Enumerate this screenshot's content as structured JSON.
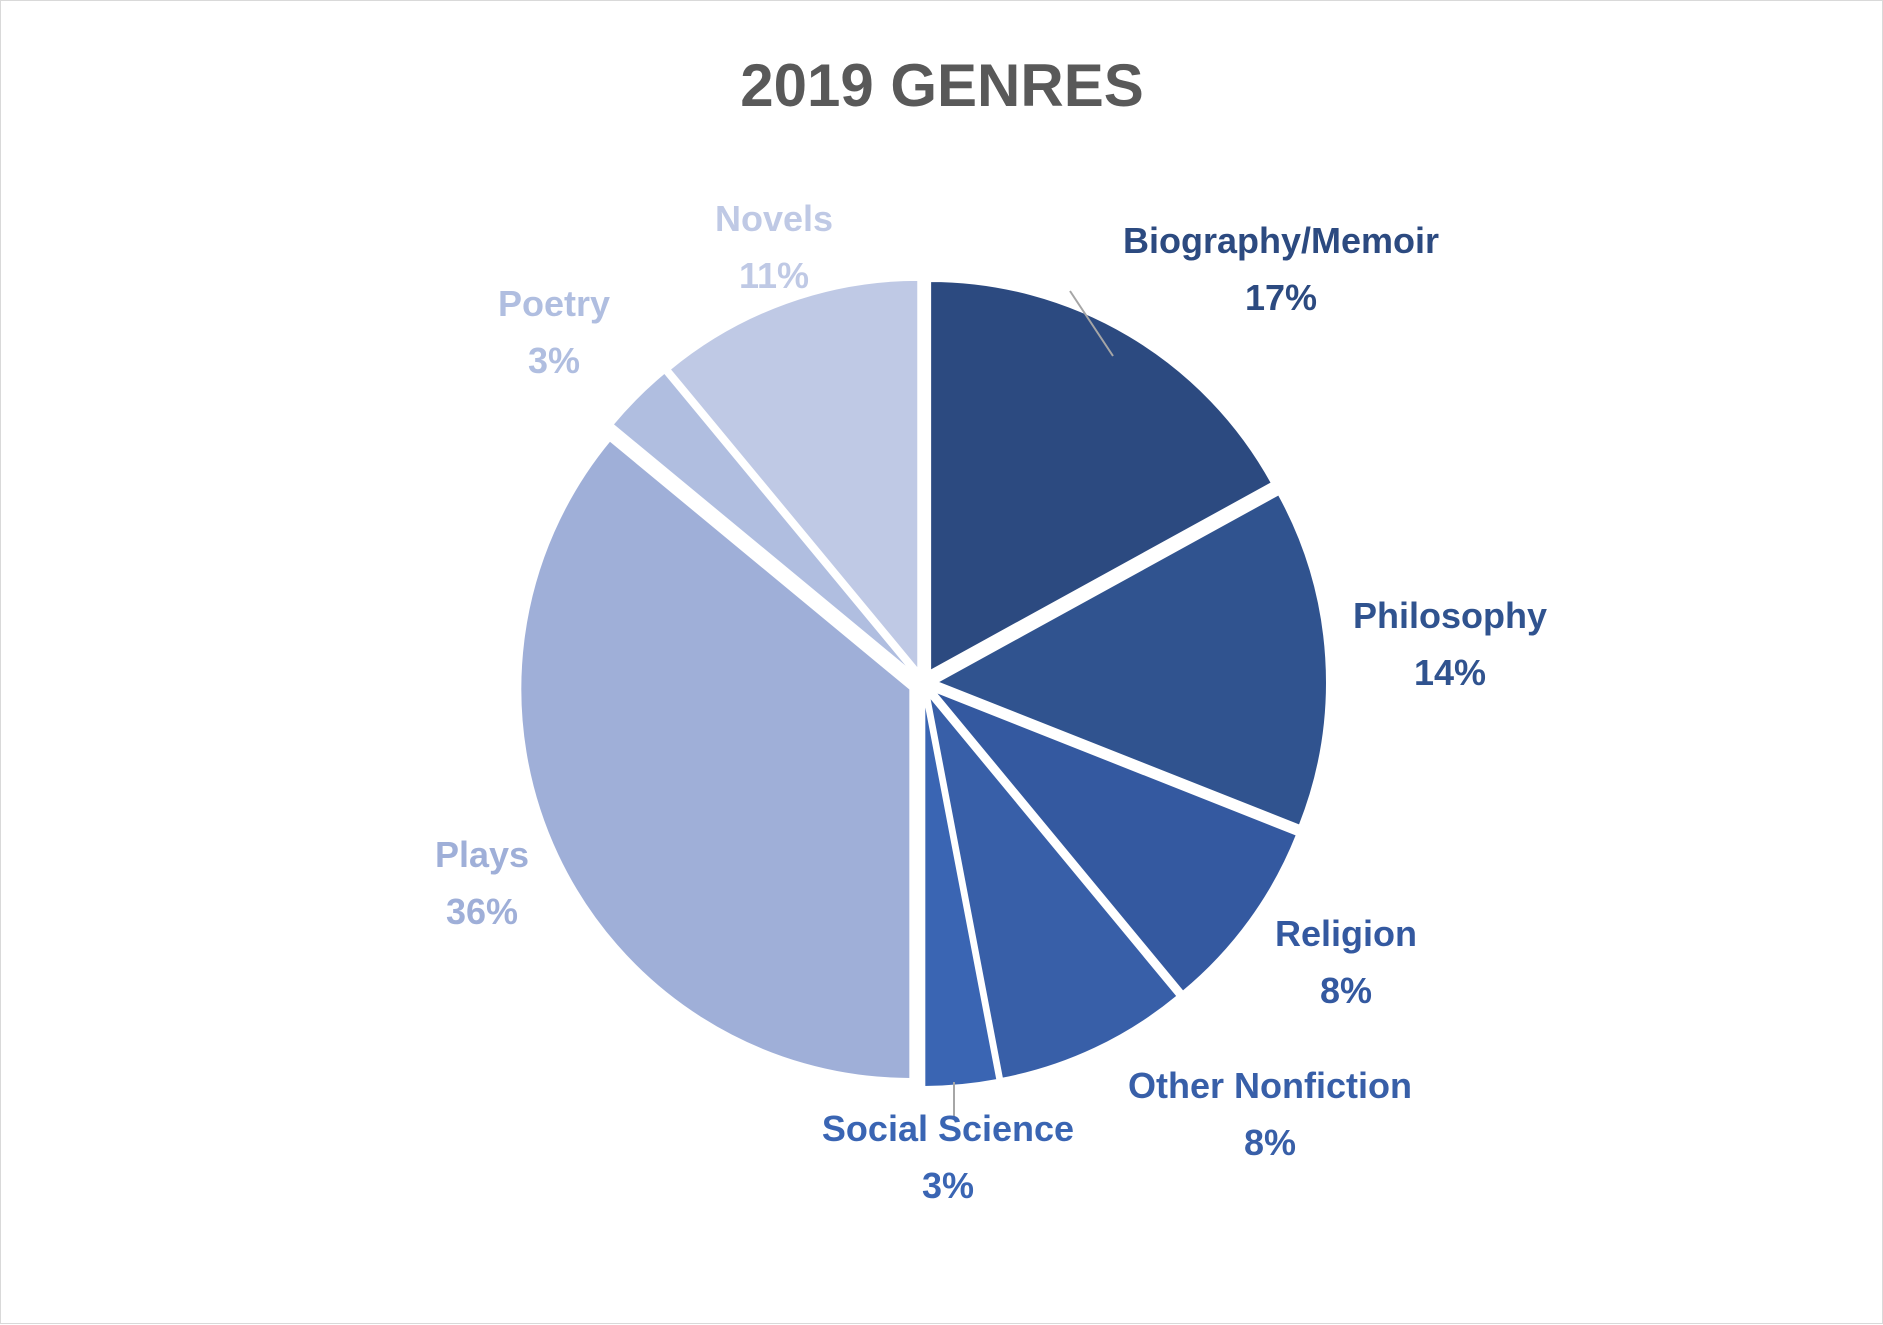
{
  "chart_data": {
    "type": "pie",
    "title": "2019 GENRES",
    "slices": [
      {
        "name": "Biography/Memoir",
        "value": 17,
        "label": "17%",
        "color": "#2c4a80"
      },
      {
        "name": "Philosophy",
        "value": 14,
        "label": "14%",
        "color": "#30538f"
      },
      {
        "name": "Religion",
        "value": 8,
        "label": "8%",
        "color": "#3459a0"
      },
      {
        "name": "Other Nonfiction",
        "value": 8,
        "label": "8%",
        "color": "#385fa8"
      },
      {
        "name": "Social Science",
        "value": 3,
        "label": "3%",
        "color": "#3a65b3"
      },
      {
        "name": "Plays",
        "value": 36,
        "label": "36%",
        "color": "#9fafd8"
      },
      {
        "name": "Poetry",
        "value": 3,
        "label": "3%",
        "color": "#b0bee0"
      },
      {
        "name": "Novels",
        "value": 11,
        "label": "11%",
        "color": "#bfc9e5"
      }
    ],
    "label_colors": {
      "Biography/Memoir": "#2c4a80",
      "Philosophy": "#30538f",
      "Religion": "#3459a0",
      "Other Nonfiction": "#385fa8",
      "Social Science": "#3a65b3",
      "Plays": "#9fafd8",
      "Poetry": "#b0bee0",
      "Novels": "#bfc9e5"
    }
  }
}
